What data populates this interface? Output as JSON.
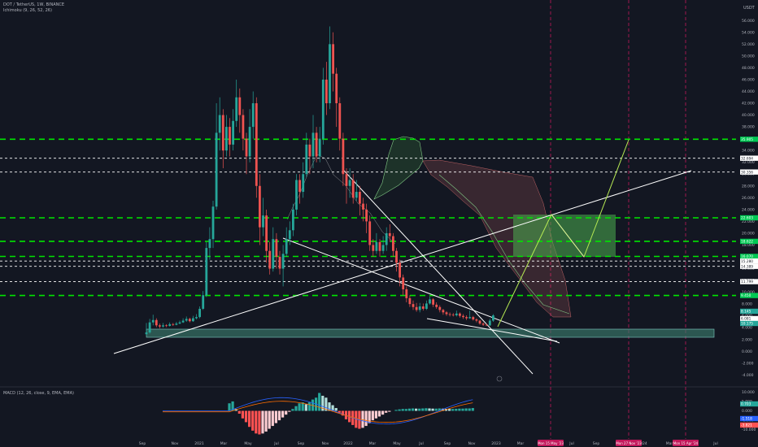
{
  "header": {
    "symbol_line": "DOT / TetherUS, 1W, BINANCE",
    "indicator_line": "Ichimoku (9, 26, 52, 26)",
    "macd_line": "MACD (12, 26, close, 9, EMA, EMA)",
    "currency": "USDT"
  },
  "colors": {
    "background": "#131722",
    "up": "#26a69a",
    "down": "#ef5350",
    "level_green": "#00e600",
    "level_white": "#ffffff",
    "trend_white": "#ffffff",
    "projection": "#b5e853",
    "zone_green": "#4caf50",
    "support_zone": "#3a7a6b",
    "vline": "#c2185b",
    "macd_line": "#2962ff",
    "signal_line": "#ff6d00",
    "cloud_bull": "#4caf50",
    "cloud_bear": "#e57373"
  },
  "chart_data": [
    {
      "type": "candlestick",
      "title": "DOT / TetherUS, 1W, BINANCE",
      "y_axis": {
        "unit": "USDT",
        "ticks": [
          "56.000",
          "54.000",
          "52.000",
          "50.000",
          "48.000",
          "46.000",
          "44.000",
          "42.000",
          "40.000",
          "38.000",
          "36.000",
          "34.000",
          "32.000",
          "30.000",
          "28.000",
          "26.000",
          "24.000",
          "22.000",
          "20.000",
          "18.000",
          "16.000",
          "14.000",
          "12.000",
          "10.000",
          "8.000",
          "6.000",
          "4.000",
          "2.000",
          "0.000",
          "-2.000",
          "-4.000"
        ],
        "ylim": [
          -4.5,
          57
        ]
      },
      "x_axis": {
        "tick_labels": [
          "Sep",
          "Nov",
          "2021",
          "Mar",
          "May",
          "Jul",
          "Sep",
          "Nov",
          "2022",
          "Mar",
          "May",
          "Jul",
          "Sep",
          "Nov",
          "2023",
          "Mar",
          "May",
          "Jul",
          "Sep",
          "Nov",
          "2024",
          "Mar",
          "Jul"
        ],
        "highlighted_dates": [
          "Mon 15 May '23",
          "Mon 27 Nov '23",
          "Mon 15 Apr '24"
        ]
      },
      "horizontal_levels": [
        {
          "value": 35.905,
          "label": "35.905",
          "style": "green-dash"
        },
        {
          "value": 32.694,
          "label": "32.694",
          "style": "white-dash"
        },
        {
          "value": 30.356,
          "label": "30.356",
          "style": "white-dash"
        },
        {
          "value": 22.603,
          "label": "22.603",
          "style": "green-dash"
        },
        {
          "value": 18.622,
          "label": "18.622",
          "style": "green-dash"
        },
        {
          "value": 16.07,
          "label": "16.070",
          "style": "green-dash"
        },
        {
          "value": 15.28,
          "label": "15.280",
          "style": "white-dash"
        },
        {
          "value": 14.389,
          "label": "14.389",
          "style": "white-dash"
        },
        {
          "value": 11.799,
          "label": "11.799",
          "style": "white-dash"
        },
        {
          "value": 9.45,
          "label": "9.450",
          "style": "green-dash"
        }
      ],
      "price_labels": [
        "8.145",
        "6.081",
        "10.175"
      ],
      "candles": [
        [
          2.9,
          3.2,
          4.8,
          2.7
        ],
        [
          3.2,
          4.9,
          5.5,
          3.0
        ],
        [
          4.9,
          5.3,
          6.2,
          4.4
        ],
        [
          5.3,
          4.4,
          5.6,
          4.1
        ],
        [
          4.4,
          4.2,
          4.7,
          3.9
        ],
        [
          4.2,
          4.4,
          4.8,
          4.0
        ],
        [
          4.4,
          4.3,
          4.6,
          4.1
        ],
        [
          4.3,
          4.6,
          4.9,
          4.2
        ],
        [
          4.6,
          4.5,
          4.8,
          4.3
        ],
        [
          4.5,
          4.7,
          5.0,
          4.4
        ],
        [
          4.7,
          4.9,
          5.2,
          4.6
        ],
        [
          4.9,
          5.2,
          5.6,
          4.8
        ],
        [
          5.2,
          5.5,
          5.9,
          5.0
        ],
        [
          5.5,
          5.1,
          5.7,
          4.9
        ],
        [
          5.1,
          5.6,
          6.0,
          5.0
        ],
        [
          5.6,
          5.8,
          6.3,
          5.4
        ],
        [
          5.8,
          7.2,
          7.6,
          5.6
        ],
        [
          7.2,
          9.5,
          10.2,
          7.0
        ],
        [
          9.5,
          17.5,
          18.5,
          9.2
        ],
        [
          17.5,
          19.0,
          21.0,
          15.5
        ],
        [
          19.0,
          24.5,
          25.5,
          17.5
        ],
        [
          24.5,
          37.0,
          42.0,
          24.0
        ],
        [
          37.0,
          40.0,
          43.0,
          34.0
        ],
        [
          40.0,
          34.0,
          41.0,
          31.0
        ],
        [
          34.0,
          38.0,
          40.0,
          33.0
        ],
        [
          38.0,
          35.0,
          39.5,
          33.0
        ],
        [
          35.0,
          39.0,
          41.0,
          34.0
        ],
        [
          39.0,
          43.0,
          46.0,
          38.0
        ],
        [
          43.0,
          40.0,
          44.5,
          37.0
        ],
        [
          40.0,
          36.0,
          41.0,
          34.0
        ],
        [
          36.0,
          33.0,
          37.0,
          30.0
        ],
        [
          33.0,
          38.0,
          41.0,
          32.0
        ],
        [
          38.0,
          42.0,
          44.0,
          36.0
        ],
        [
          42.0,
          28.0,
          43.0,
          26.0
        ],
        [
          28.0,
          21.0,
          30.0,
          18.0
        ],
        [
          21.0,
          23.0,
          26.0,
          19.5
        ],
        [
          23.0,
          17.0,
          24.0,
          15.0
        ],
        [
          17.0,
          14.0,
          18.5,
          13.0
        ],
        [
          14.0,
          19.0,
          21.0,
          13.5
        ],
        [
          19.0,
          16.0,
          20.0,
          14.0
        ],
        [
          16.0,
          14.0,
          17.0,
          13.0
        ],
        [
          14.0,
          16.5,
          18.0,
          11.0
        ],
        [
          16.5,
          19.0,
          21.0,
          16.0
        ],
        [
          19.0,
          20.5,
          22.0,
          18.0
        ],
        [
          20.5,
          24.0,
          25.0,
          19.5
        ],
        [
          24.0,
          29.0,
          30.0,
          23.0
        ],
        [
          29.0,
          27.0,
          30.0,
          25.0
        ],
        [
          27.0,
          30.0,
          32.0,
          26.0
        ],
        [
          30.0,
          35.0,
          37.0,
          29.5
        ],
        [
          35.0,
          33.0,
          36.0,
          30.0
        ],
        [
          33.0,
          37.0,
          40.0,
          31.0
        ],
        [
          37.0,
          33.0,
          38.0,
          32.0
        ],
        [
          33.0,
          36.0,
          38.0,
          32.0
        ],
        [
          36.0,
          46.0,
          48.0,
          35.0
        ],
        [
          46.0,
          42.0,
          49.0,
          40.0
        ],
        [
          42.0,
          52.0,
          55.0,
          41.0
        ],
        [
          52.0,
          47.0,
          54.0,
          44.0
        ],
        [
          47.0,
          42.0,
          48.0,
          38.0
        ],
        [
          42.0,
          36.0,
          43.0,
          34.0
        ],
        [
          36.0,
          30.0,
          37.0,
          28.0
        ],
        [
          30.0,
          28.0,
          31.0,
          25.0
        ],
        [
          28.0,
          29.0,
          31.0,
          26.0
        ],
        [
          29.0,
          26.0,
          30.0,
          25.0
        ],
        [
          26.0,
          27.0,
          29.0,
          25.5
        ],
        [
          27.0,
          25.0,
          28.0,
          23.0
        ],
        [
          25.0,
          24.0,
          26.0,
          22.0
        ],
        [
          24.0,
          22.0,
          25.0,
          20.0
        ],
        [
          22.0,
          18.0,
          23.0,
          17.0
        ],
        [
          18.0,
          17.0,
          19.0,
          16.0
        ],
        [
          17.0,
          18.5,
          20.0,
          16.5
        ],
        [
          18.5,
          17.0,
          19.0,
          16.0
        ],
        [
          17.0,
          18.0,
          19.5,
          16.5
        ],
        [
          18.0,
          20.0,
          21.0,
          17.0
        ],
        [
          20.0,
          19.5,
          21.5,
          18.5
        ],
        [
          19.5,
          17.0,
          20.0,
          16.0
        ],
        [
          17.0,
          15.0,
          17.5,
          13.5
        ],
        [
          15.0,
          12.5,
          15.5,
          11.0
        ],
        [
          12.5,
          10.5,
          13.0,
          9.5
        ],
        [
          10.5,
          9.0,
          11.0,
          8.3
        ],
        [
          9.0,
          8.0,
          9.5,
          7.5
        ],
        [
          8.0,
          7.5,
          8.6,
          7.0
        ],
        [
          7.5,
          7.0,
          8.2,
          6.7
        ],
        [
          7.0,
          7.6,
          8.2,
          6.6
        ],
        [
          7.6,
          7.2,
          8.1,
          6.9
        ],
        [
          7.2,
          8.1,
          8.6,
          7.0
        ],
        [
          8.1,
          8.8,
          9.3,
          7.9
        ],
        [
          8.8,
          7.9,
          9.0,
          7.5
        ],
        [
          7.9,
          7.5,
          8.3,
          7.2
        ],
        [
          7.5,
          7.0,
          7.8,
          6.6
        ],
        [
          7.0,
          6.6,
          7.2,
          6.2
        ],
        [
          6.6,
          6.3,
          6.8,
          6.0
        ],
        [
          6.3,
          6.2,
          6.6,
          5.9
        ],
        [
          6.2,
          6.1,
          6.5,
          5.9
        ],
        [
          6.1,
          6.4,
          6.9,
          5.9
        ],
        [
          6.4,
          6.0,
          6.6,
          5.7
        ],
        [
          6.0,
          5.8,
          6.3,
          5.5
        ],
        [
          5.8,
          5.6,
          6.1,
          5.3
        ],
        [
          5.6,
          5.8,
          6.9,
          5.5
        ],
        [
          5.8,
          5.4,
          6.0,
          5.2
        ],
        [
          5.4,
          5.2,
          5.6,
          4.9
        ],
        [
          5.2,
          4.7,
          5.3,
          4.5
        ],
        [
          4.7,
          4.5,
          4.9,
          4.3
        ],
        [
          4.5,
          4.4,
          4.7,
          4.3
        ],
        [
          4.4,
          5.2,
          5.5,
          4.3
        ],
        [
          5.2,
          6.08,
          6.3,
          5.0
        ]
      ]
    },
    {
      "type": "macd",
      "title": "MACD (12, 26, close, 9, EMA, EMA)",
      "y_axis": {
        "ticks": [
          "10.000",
          "5.000",
          "0.000",
          "-5.000",
          "-10.000"
        ],
        "ylim": [
          -14,
          11
        ]
      },
      "value_labels": [
        "0.703",
        "-1.518",
        "-3.821"
      ],
      "histogram": [
        0,
        0,
        0,
        0,
        0,
        0,
        0,
        0,
        0,
        0,
        0,
        0,
        0,
        0,
        0,
        0,
        0,
        0,
        0,
        0,
        4.0,
        5.0,
        1.0,
        -1.5,
        -4.0,
        -6.0,
        -8.5,
        -10.5,
        -12.0,
        -12.5,
        -12.0,
        -11.0,
        -9.5,
        -8.0,
        -6.5,
        -5.0,
        -3.5,
        -2.0,
        -0.5,
        1.0,
        2.5,
        4.0,
        4.5,
        3.5,
        4.5,
        6.0,
        7.0,
        9.5,
        8.0,
        7.0,
        4.5,
        3.0,
        1.5,
        -1.0,
        -2.5,
        -4.5,
        -6.0,
        -7.5,
        -9.0,
        -9.5,
        -9.0,
        -8.0,
        -6.5,
        -5.0,
        -4.0,
        -3.0,
        -2.0,
        -1.0,
        -0.5,
        0.0,
        0.5,
        0.8,
        1.0,
        1.0,
        1.2,
        1.3,
        1.2,
        1.2,
        1.3,
        1.4,
        1.3,
        1.2,
        1.2,
        1.3,
        1.2,
        1.1,
        1.0,
        1.0,
        1.1,
        1.2,
        1.2,
        1.3,
        1.3,
        1.5
      ]
    }
  ]
}
